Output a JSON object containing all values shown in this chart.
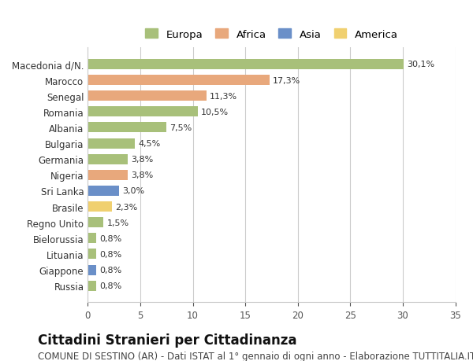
{
  "countries": [
    "Macedonia d/N.",
    "Marocco",
    "Senegal",
    "Romania",
    "Albania",
    "Bulgaria",
    "Germania",
    "Nigeria",
    "Sri Lanka",
    "Brasile",
    "Regno Unito",
    "Bielorussia",
    "Lituania",
    "Giappone",
    "Russia"
  ],
  "values": [
    30.1,
    17.3,
    11.3,
    10.5,
    7.5,
    4.5,
    3.8,
    3.8,
    3.0,
    2.3,
    1.5,
    0.8,
    0.8,
    0.8,
    0.8
  ],
  "labels": [
    "30,1%",
    "17,3%",
    "11,3%",
    "10,5%",
    "7,5%",
    "4,5%",
    "3,8%",
    "3,8%",
    "3,0%",
    "2,3%",
    "1,5%",
    "0,8%",
    "0,8%",
    "0,8%",
    "0,8%"
  ],
  "categories": [
    "Europa",
    "Africa",
    "Africa",
    "Europa",
    "Europa",
    "Europa",
    "Europa",
    "Africa",
    "Asia",
    "America",
    "Europa",
    "Europa",
    "Europa",
    "Asia",
    "Europa"
  ],
  "colors": {
    "Europa": "#a8c07a",
    "Africa": "#e8a87c",
    "Asia": "#6a8fc8",
    "America": "#f0d070"
  },
  "legend_order": [
    "Europa",
    "Africa",
    "Asia",
    "America"
  ],
  "legend_colors": [
    "#a8c07a",
    "#e8a87c",
    "#6a8fc8",
    "#f0d070"
  ],
  "title": "Cittadini Stranieri per Cittadinanza",
  "subtitle": "COMUNE DI SESTINO (AR) - Dati ISTAT al 1° gennaio di ogni anno - Elaborazione TUTTITALIA.IT",
  "xlim": [
    0,
    35
  ],
  "xticks": [
    0,
    5,
    10,
    15,
    20,
    25,
    30,
    35
  ],
  "background_color": "#ffffff",
  "grid_color": "#cccccc",
  "bar_height": 0.65,
  "title_fontsize": 12,
  "subtitle_fontsize": 8.5,
  "label_fontsize": 8,
  "tick_fontsize": 8.5,
  "legend_fontsize": 9.5
}
